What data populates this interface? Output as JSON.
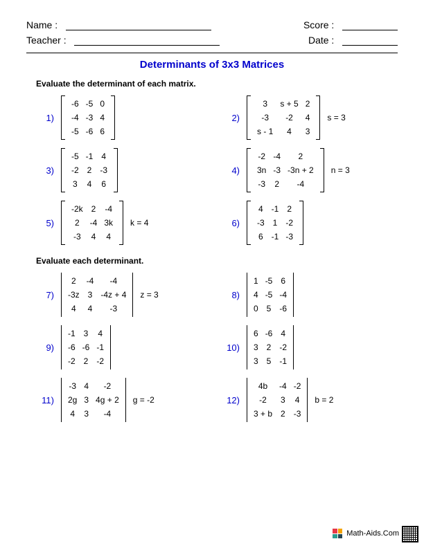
{
  "header": {
    "name_label": "Name :",
    "teacher_label": "Teacher :",
    "score_label": "Score :",
    "date_label": "Date :",
    "long_line_width": 210,
    "short_line_width": 80
  },
  "title": "Determinants of 3x3 Matrices",
  "section1": "Evaluate the determinant of each matrix.",
  "section2": "Evaluate each determinant.",
  "colors": {
    "accent": "#0000cc",
    "text": "#000000",
    "background": "#ffffff"
  },
  "logo_colors": [
    "#e63946",
    "#f4a300",
    "#2a9d8f",
    "#264653"
  ],
  "footer": "Math-Aids.Com",
  "problems": [
    {
      "n": "1)",
      "style": "bracket",
      "rows": [
        [
          "-6",
          "-5",
          "0"
        ],
        [
          "-4",
          "-3",
          "4"
        ],
        [
          "-5",
          "-6",
          "6"
        ]
      ],
      "cond": ""
    },
    {
      "n": "2)",
      "style": "bracket",
      "rows": [
        [
          "3",
          "s + 5",
          "2"
        ],
        [
          "-3",
          "-2",
          "4"
        ],
        [
          "s - 1",
          "4",
          "3"
        ]
      ],
      "cond": "s = 3"
    },
    {
      "n": "3)",
      "style": "bracket",
      "rows": [
        [
          "-5",
          "-1",
          "4"
        ],
        [
          "-2",
          "2",
          "-3"
        ],
        [
          "3",
          "4",
          "6"
        ]
      ],
      "cond": ""
    },
    {
      "n": "4)",
      "style": "bracket",
      "rows": [
        [
          "-2",
          "-4",
          "2"
        ],
        [
          "3n",
          "-3",
          "-3n + 2"
        ],
        [
          "-3",
          "2",
          "-4"
        ]
      ],
      "cond": "n = 3"
    },
    {
      "n": "5)",
      "style": "bracket",
      "rows": [
        [
          "-2k",
          "2",
          "-4"
        ],
        [
          "2",
          "-4",
          "3k"
        ],
        [
          "-3",
          "4",
          "4"
        ]
      ],
      "cond": "k = 4"
    },
    {
      "n": "6)",
      "style": "bracket",
      "rows": [
        [
          "4",
          "-1",
          "2"
        ],
        [
          "-3",
          "1",
          "-2"
        ],
        [
          "6",
          "-1",
          "-3"
        ]
      ],
      "cond": ""
    },
    {
      "n": "7)",
      "style": "det",
      "rows": [
        [
          "2",
          "-4",
          "-4"
        ],
        [
          "-3z",
          "3",
          "-4z + 4"
        ],
        [
          "4",
          "4",
          "-3"
        ]
      ],
      "cond": "z = 3"
    },
    {
      "n": "8)",
      "style": "det",
      "rows": [
        [
          "1",
          "-5",
          "6"
        ],
        [
          "4",
          "-5",
          "-4"
        ],
        [
          "0",
          "5",
          "-6"
        ]
      ],
      "cond": ""
    },
    {
      "n": "9)",
      "style": "det",
      "rows": [
        [
          "-1",
          "3",
          "4"
        ],
        [
          "-6",
          "-6",
          "-1"
        ],
        [
          "-2",
          "2",
          "-2"
        ]
      ],
      "cond": ""
    },
    {
      "n": "10)",
      "style": "det",
      "rows": [
        [
          "6",
          "-6",
          "4"
        ],
        [
          "3",
          "2",
          "-2"
        ],
        [
          "3",
          "5",
          "-1"
        ]
      ],
      "cond": ""
    },
    {
      "n": "11)",
      "style": "det",
      "rows": [
        [
          "-3",
          "4",
          "-2"
        ],
        [
          "2g",
          "3",
          "4g + 2"
        ],
        [
          "4",
          "3",
          "-4"
        ]
      ],
      "cond": "g = -2"
    },
    {
      "n": "12)",
      "style": "det",
      "rows": [
        [
          "4b",
          "-4",
          "-2"
        ],
        [
          "-2",
          "3",
          "4"
        ],
        [
          "3 + b",
          "2",
          "-3"
        ]
      ],
      "cond": "b = 2"
    }
  ]
}
